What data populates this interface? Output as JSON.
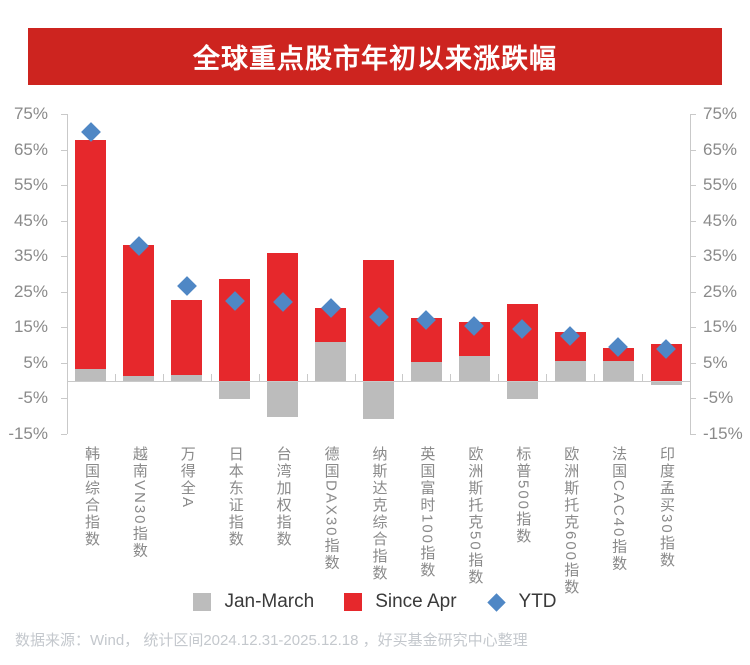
{
  "title": "全球重点股市年初以来涨跌幅",
  "footer": "数据来源：Wind， 统计区间2024.12.31-2025.12.18 ，好买基金研究中心整理",
  "colors": {
    "banner": "#cd241f",
    "jan_march": "#bcbcbc",
    "since_apr": "#e6282c",
    "ytd": "#4f87c5",
    "axis": "#c9c9c9",
    "axis_label": "#8a8a8a",
    "legend_text": "#3a3a3a",
    "footer_text": "#c4c8cd"
  },
  "legend": {
    "jan_march": "Jan-March",
    "since_apr": "Since Apr",
    "ytd": "YTD"
  },
  "chart_data": {
    "type": "bar",
    "subtype": "stacked-bars-with-diamond-markers",
    "title": "全球重点股市年初以来涨跌幅",
    "categories": [
      "韩国综合指数",
      "越南VN30指数",
      "万得全A",
      "日本东证指数",
      "台湾加权指数",
      "德国DAX30指数",
      "纳斯达克综合指数",
      "英国富时100指数",
      "欧洲斯托克50指数",
      "标普500指数",
      "欧洲斯托克600指数",
      "法国CAC40指数",
      "印度孟买30指数"
    ],
    "series": [
      {
        "name": "Jan-March",
        "type": "bar",
        "color": "#bcbcbc",
        "values": [
          3.3,
          1.2,
          1.7,
          -5,
          -10,
          11,
          -10.5,
          5.2,
          7,
          -5,
          5.4,
          5.4,
          -1
        ]
      },
      {
        "name": "Since Apr",
        "type": "bar",
        "color": "#e6282c",
        "values": [
          64.5,
          37,
          21,
          28.5,
          36,
          9.5,
          34,
          12.3,
          9.4,
          21.7,
          8.2,
          3.8,
          10.2
        ]
      },
      {
        "name": "YTD",
        "type": "scatter-diamond",
        "color": "#4f87c5",
        "values": [
          70,
          38,
          26.5,
          22.5,
          22,
          20.5,
          18,
          17,
          15.5,
          14.5,
          12.5,
          9.5,
          9
        ]
      }
    ],
    "stacking_note": "positive Jan-March stacks below Since Apr; negative Jan-March hangs below zero while Since Apr starts at zero",
    "ylim": [
      -15,
      75
    ],
    "yticks": [
      75,
      65,
      55,
      45,
      35,
      25,
      15,
      5,
      -5,
      -15
    ],
    "ytick_suffix": "%",
    "axes": "mirrored left and right percentage axes",
    "grid": false,
    "legend_position": "bottom"
  }
}
